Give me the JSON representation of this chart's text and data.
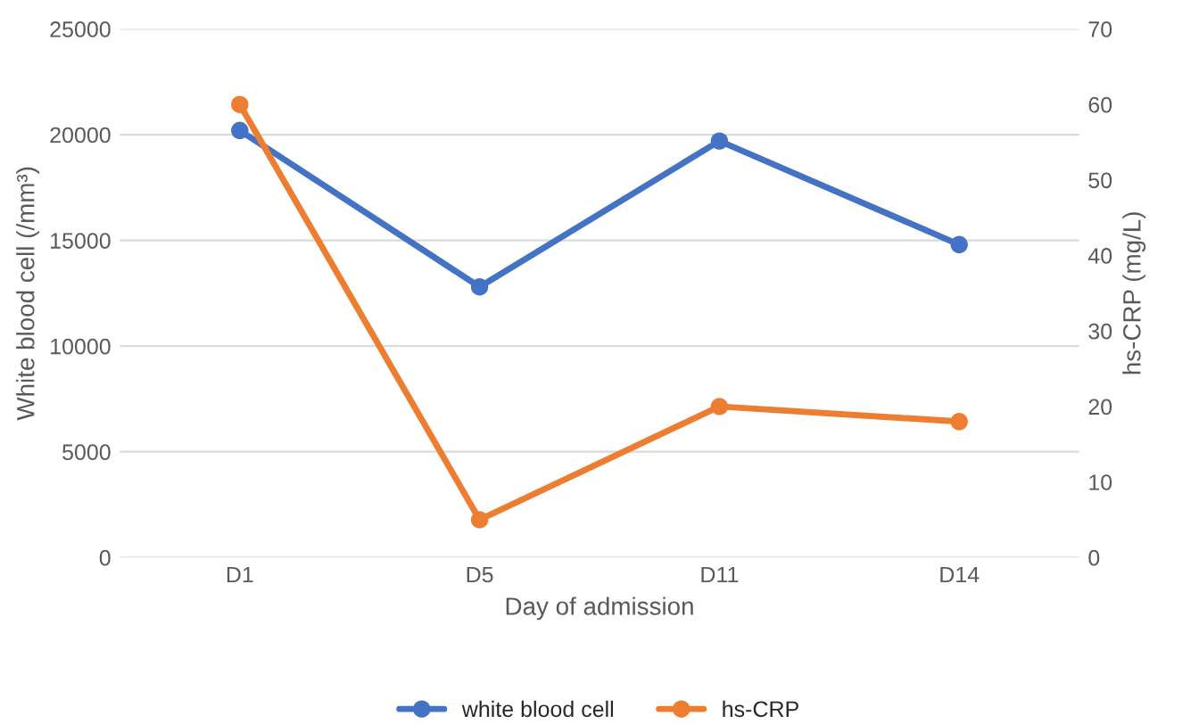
{
  "chart_data": {
    "type": "line",
    "xlabel": "Day of admission",
    "ylabel": "White blood cell (/mm³)",
    "y2label": "hs-CRP (mg/L)",
    "categories": [
      "D1",
      "D5",
      "D11",
      "D14"
    ],
    "series": [
      {
        "name": "white blood cell",
        "color": "#4472c4",
        "values": [
          20200,
          12800,
          19700,
          14800
        ]
      },
      {
        "name": "hs-CRP",
        "color": "#ed7d31",
        "values": [
          60,
          5,
          20,
          18
        ],
        "axis": "y2"
      }
    ],
    "ylim": [
      0,
      25000
    ],
    "yticks": [
      0,
      5000,
      10000,
      15000,
      20000,
      25000
    ],
    "y2lim": [
      0,
      70
    ],
    "y2ticks": [
      0,
      10,
      20,
      30,
      40,
      50,
      60,
      70
    ],
    "grid": "y",
    "legend": "bottom",
    "marker": "circle",
    "line_style": "solid"
  }
}
